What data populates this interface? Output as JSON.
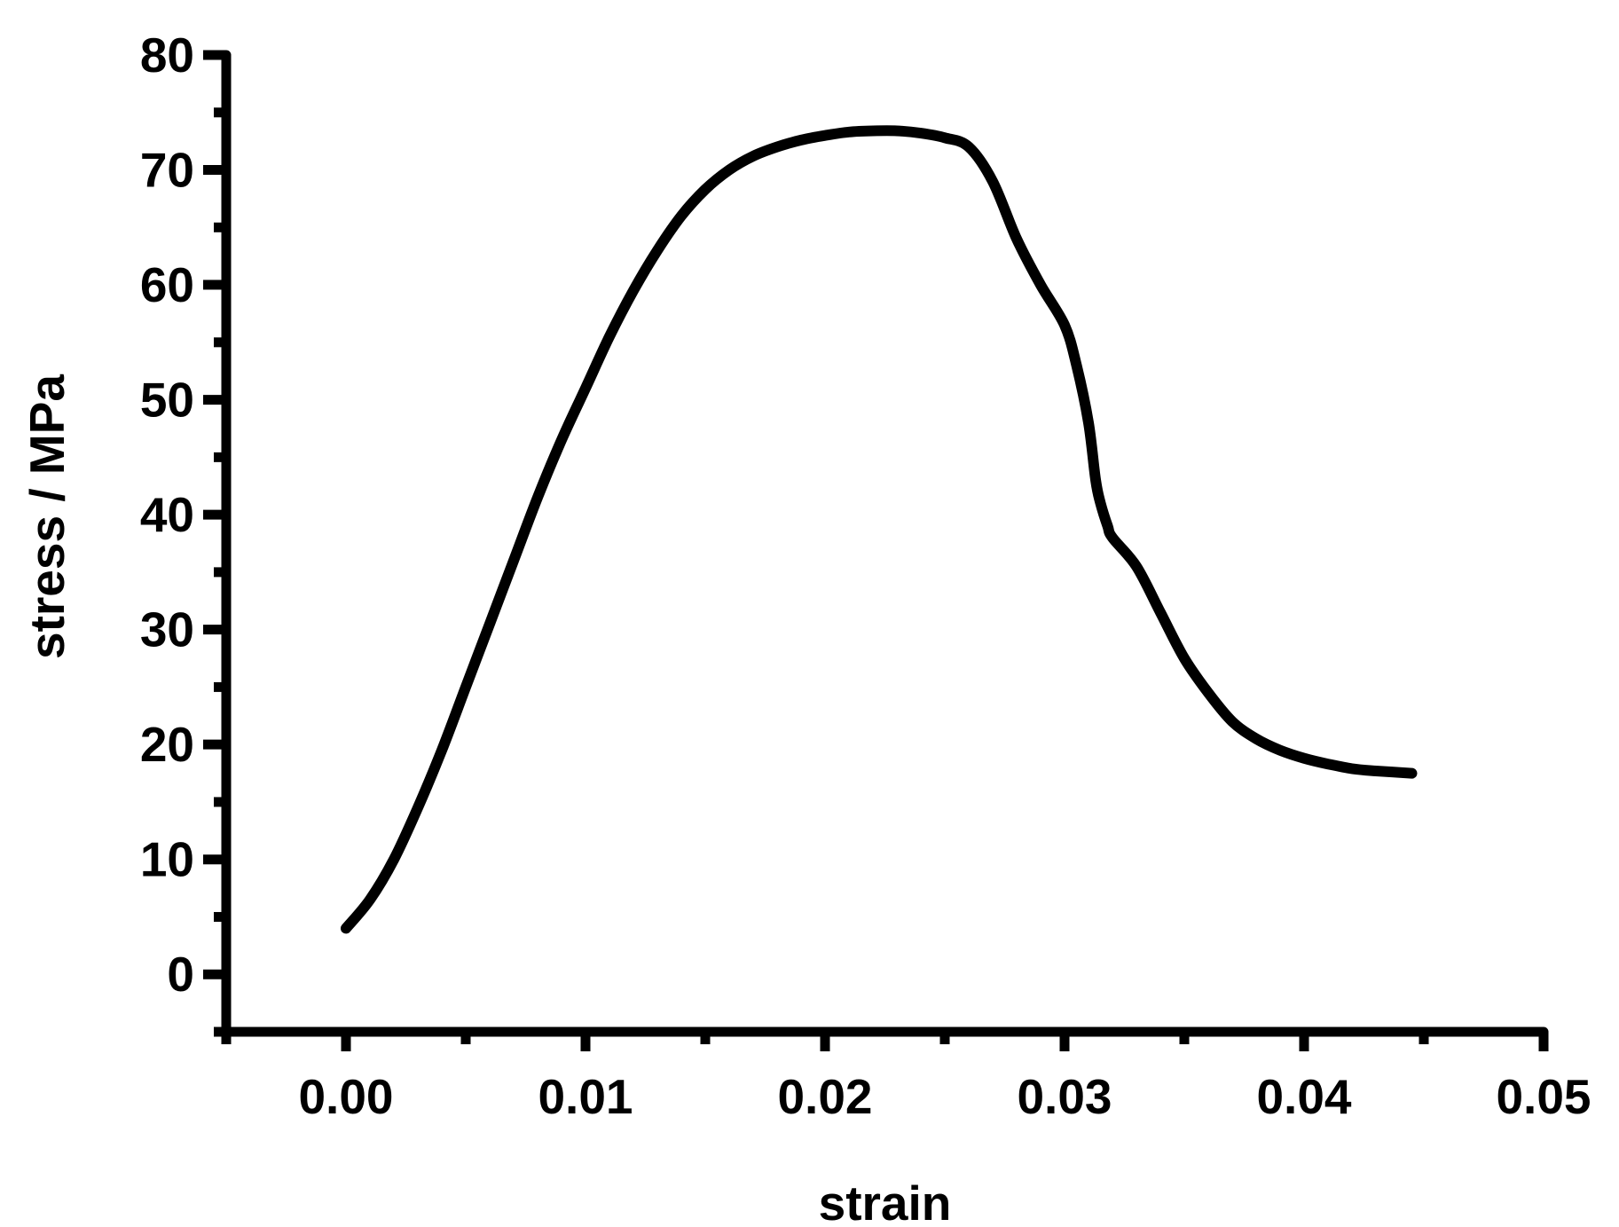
{
  "chart_data": {
    "type": "line",
    "title": "",
    "xlabel": "strain",
    "ylabel": "stress / MPa",
    "xlim": [
      -0.005,
      0.05
    ],
    "ylim": [
      -5,
      80
    ],
    "x_ticks": [
      "0.00",
      "0.01",
      "0.02",
      "0.03",
      "0.04",
      "0.05"
    ],
    "x_tick_values": [
      0.0,
      0.01,
      0.02,
      0.03,
      0.04,
      0.05
    ],
    "y_ticks": [
      "0",
      "10",
      "20",
      "30",
      "40",
      "50",
      "60",
      "70",
      "80"
    ],
    "y_tick_values": [
      0,
      10,
      20,
      30,
      40,
      50,
      60,
      70,
      80
    ],
    "grid": false,
    "line_color": "#000000",
    "series": [
      {
        "x": [
          0.0,
          0.001,
          0.002,
          0.003,
          0.004,
          0.005,
          0.006,
          0.007,
          0.008,
          0.009,
          0.01,
          0.011,
          0.012,
          0.013,
          0.014,
          0.015,
          0.016,
          0.017,
          0.018,
          0.019,
          0.02,
          0.021,
          0.022,
          0.023,
          0.024,
          0.025,
          0.026,
          0.027,
          0.028,
          0.029,
          0.03,
          0.0305,
          0.031,
          0.0313,
          0.0315,
          0.0318,
          0.032,
          0.033,
          0.034,
          0.035,
          0.036,
          0.037,
          0.038,
          0.039,
          0.04,
          0.041,
          0.042,
          0.043,
          0.0445
        ],
        "y": [
          4.0,
          6.5,
          10.0,
          14.5,
          19.5,
          25.0,
          30.5,
          36.0,
          41.5,
          46.5,
          51.0,
          55.5,
          59.5,
          63.0,
          66.0,
          68.3,
          70.0,
          71.2,
          72.0,
          72.6,
          73.0,
          73.3,
          73.4,
          73.4,
          73.2,
          72.8,
          72.0,
          69.0,
          64.0,
          60.0,
          56.5,
          53.0,
          48.0,
          43.0,
          41.0,
          39.0,
          38.0,
          35.5,
          31.5,
          27.5,
          24.5,
          22.0,
          20.5,
          19.5,
          18.8,
          18.3,
          17.9,
          17.7,
          17.5
        ]
      }
    ]
  }
}
